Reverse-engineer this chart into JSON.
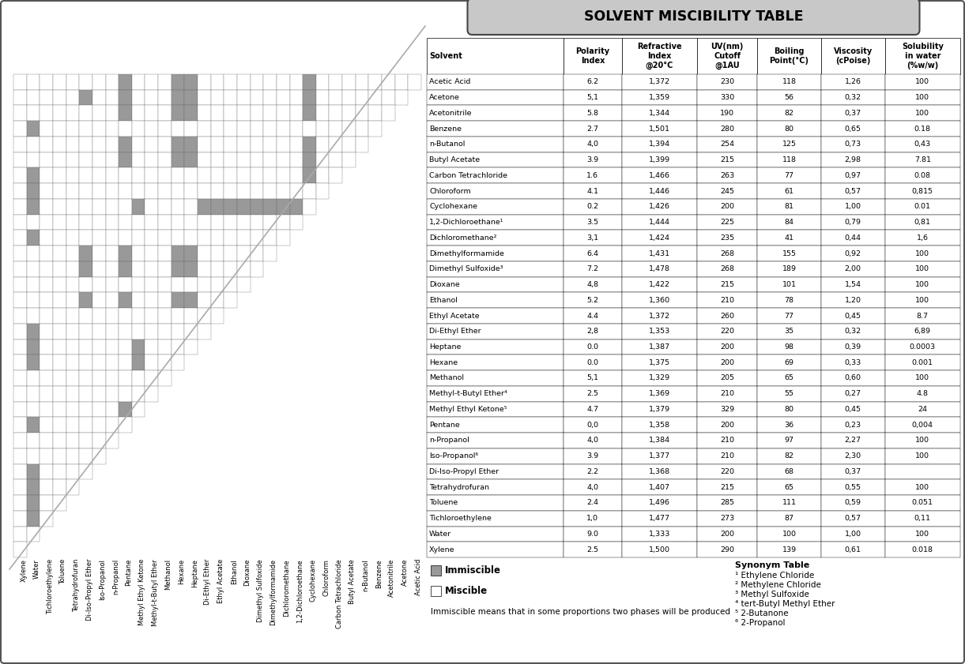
{
  "title": "SOLVENT MISCIBILITY TABLE",
  "solvents_rows": [
    "Acetic Acid",
    "Acetone",
    "Acetonitrile",
    "Benzene",
    "n-Butanol",
    "Butyl Acetate",
    "Carbon Tetrachloride",
    "Chloroform",
    "Cyclohexane",
    "1,2-Dichloroethane¹",
    "Dichloromethane²",
    "Dimethylformamide",
    "Dimethyl Sulfoxide³",
    "Dioxane",
    "Ethanol",
    "Ethyl Acetate",
    "Di-Ethyl Ether",
    "Heptane",
    "Hexane",
    "Methanol",
    "Methyl-t-Butyl Ether⁴",
    "Methyl Ethyl Ketone⁵",
    "Pentane",
    "n-Propanol",
    "Iso-Propanol⁶",
    "Di-Iso-Propyl Ether",
    "Tetrahydrofuran",
    "Toluene",
    "Tichloroethylene",
    "Water",
    "Xylene"
  ],
  "solvents_cols": [
    "Xylene",
    "Water",
    "Tichloroethylene",
    "Toluene",
    "Tetrahydrofuran",
    "Di-Iso-Propyl Ether",
    "Iso-Propanol",
    "n-Propanol",
    "Pentane",
    "Methyl Ethyl Ketone",
    "Methyl-t-Butyl Ether",
    "Methanol",
    "Hexane",
    "Heptane",
    "Di-Ethyl Ether",
    "Ethyl Acetate",
    "Ethanol",
    "Dioxane",
    "Dimethyl Sulfoxide",
    "Dimethylformamide",
    "Dichloromethane",
    "1,2-Dichloroethane",
    "Cyclohexane",
    "Chloroform",
    "Carbon Tetrachloride",
    "Butyl Acetate",
    "n-Butanol",
    "Benzene",
    "Acetonitrile",
    "Acetone",
    "Acetic Acid"
  ],
  "table_solvents": [
    "Acetic Acid",
    "Acetone",
    "Acetonitrile",
    "Benzene",
    "n-Butanol",
    "Butyl Acetate",
    "Carbon Tetrachloride",
    "Chloroform",
    "Cyclohexane",
    "1,2-Dichloroethane¹",
    "Dichloromethane²",
    "Dimethylformamide",
    "Dimethyl Sulfoxide³",
    "Dioxane",
    "Ethanol",
    "Ethyl Acetate",
    "Di-Ethyl Ether",
    "Heptane",
    "Hexane",
    "Methanol",
    "Methyl-t-Butyl Ether⁴",
    "Methyl Ethyl Ketone⁵",
    "Pentane",
    "n-Propanol",
    "Iso-Propanol⁶",
    "Di-Iso-Propyl Ether",
    "Tetrahydrofuran",
    "Toluene",
    "Tichloroethylene",
    "Water",
    "Xylene"
  ],
  "polarity": [
    "6.2",
    "5,1",
    "5.8",
    "2.7",
    "4,0",
    "3.9",
    "1.6",
    "4.1",
    "0.2",
    "3.5",
    "3,1",
    "6.4",
    "7.2",
    "4,8",
    "5.2",
    "4.4",
    "2,8",
    "0.0",
    "0.0",
    "5,1",
    "2.5",
    "4.7",
    "0,0",
    "4,0",
    "3.9",
    "2.2",
    "4,0",
    "2.4",
    "1,0",
    "9.0",
    "2.5"
  ],
  "refractive": [
    "1,372",
    "1,359",
    "1,344",
    "1,501",
    "1,394",
    "1,399",
    "1,466",
    "1,446",
    "1,426",
    "1,444",
    "1,424",
    "1,431",
    "1,478",
    "1,422",
    "1,360",
    "1,372",
    "1,353",
    "1,387",
    "1,375",
    "1,329",
    "1,369",
    "1,379",
    "1,358",
    "1,384",
    "1,377",
    "1,368",
    "1,407",
    "1,496",
    "1,477",
    "1,333",
    "1,500"
  ],
  "uv": [
    "230",
    "330",
    "190",
    "280",
    "254",
    "215",
    "263",
    "245",
    "200",
    "225",
    "235",
    "268",
    "268",
    "215",
    "210",
    "260",
    "220",
    "200",
    "200",
    "205",
    "210",
    "329",
    "200",
    "210",
    "210",
    "220",
    "215",
    "285",
    "273",
    "200",
    "290"
  ],
  "boiling": [
    "118",
    "56",
    "82",
    "80",
    "125",
    "118",
    "77",
    "61",
    "81",
    "84",
    "41",
    "155",
    "189",
    "101",
    "78",
    "77",
    "35",
    "98",
    "69",
    "65",
    "55",
    "80",
    "36",
    "97",
    "82",
    "68",
    "65",
    "111",
    "87",
    "100",
    "139"
  ],
  "viscosity": [
    "1,26",
    "0,32",
    "0,37",
    "0,65",
    "0,73",
    "2,98",
    "0,97",
    "0,57",
    "1,00",
    "0,79",
    "0,44",
    "0,92",
    "2,00",
    "1,54",
    "1,20",
    "0,45",
    "0,32",
    "0,39",
    "0,33",
    "0,60",
    "0,27",
    "0,45",
    "0,23",
    "2,27",
    "2,30",
    "0,37",
    "0,55",
    "0,59",
    "0,57",
    "1,00",
    "0,61"
  ],
  "solubility": [
    "100",
    "100",
    "100",
    "0.18",
    "0,43",
    "7.81",
    "0.08",
    "0,815",
    "0.01",
    "0,81",
    "1,6",
    "100",
    "100",
    "100",
    "100",
    "8.7",
    "6,89",
    "0.0003",
    "0.001",
    "100",
    "4.8",
    "24",
    "0,004",
    "100",
    "100",
    "",
    "100",
    "0.051",
    "0,11",
    "100",
    "0.018"
  ],
  "immiscible_pairs": [
    [
      8,
      0
    ],
    [
      8,
      1
    ],
    [
      8,
      2
    ],
    [
      8,
      4
    ],
    [
      8,
      5
    ],
    [
      8,
      6
    ],
    [
      8,
      9
    ],
    [
      8,
      10
    ],
    [
      8,
      11
    ],
    [
      8,
      12
    ],
    [
      8,
      13
    ],
    [
      8,
      14
    ],
    [
      8,
      15
    ],
    [
      8,
      16
    ],
    [
      8,
      21
    ],
    [
      17,
      0
    ],
    [
      17,
      1
    ],
    [
      17,
      2
    ],
    [
      17,
      4
    ],
    [
      17,
      5
    ],
    [
      17,
      11
    ],
    [
      17,
      12
    ],
    [
      17,
      14
    ],
    [
      17,
      21
    ],
    [
      18,
      0
    ],
    [
      18,
      1
    ],
    [
      18,
      2
    ],
    [
      18,
      4
    ],
    [
      18,
      5
    ],
    [
      18,
      11
    ],
    [
      18,
      12
    ],
    [
      18,
      14
    ],
    [
      18,
      21
    ],
    [
      22,
      0
    ],
    [
      22,
      1
    ],
    [
      22,
      2
    ],
    [
      22,
      4
    ],
    [
      22,
      5
    ],
    [
      22,
      11
    ],
    [
      22,
      12
    ],
    [
      22,
      14
    ],
    [
      22,
      21
    ],
    [
      25,
      1
    ],
    [
      25,
      11
    ],
    [
      25,
      12
    ],
    [
      25,
      14
    ],
    [
      29,
      3
    ],
    [
      29,
      6
    ],
    [
      29,
      7
    ],
    [
      29,
      8
    ],
    [
      29,
      10
    ],
    [
      29,
      16
    ],
    [
      29,
      17
    ],
    [
      29,
      18
    ],
    [
      29,
      22
    ],
    [
      29,
      25
    ],
    [
      29,
      26
    ],
    [
      29,
      27
    ],
    [
      29,
      28
    ]
  ],
  "cell_immiscible": "#999999",
  "synonyms": [
    "¹ Ethylene Chloride",
    "² Methylene Chloride",
    "³ Methyl Sulfoxide",
    "⁴ tert-Butyl Methyl Ether",
    "⁵ 2-Butanone",
    "⁶ 2-Propanol"
  ]
}
